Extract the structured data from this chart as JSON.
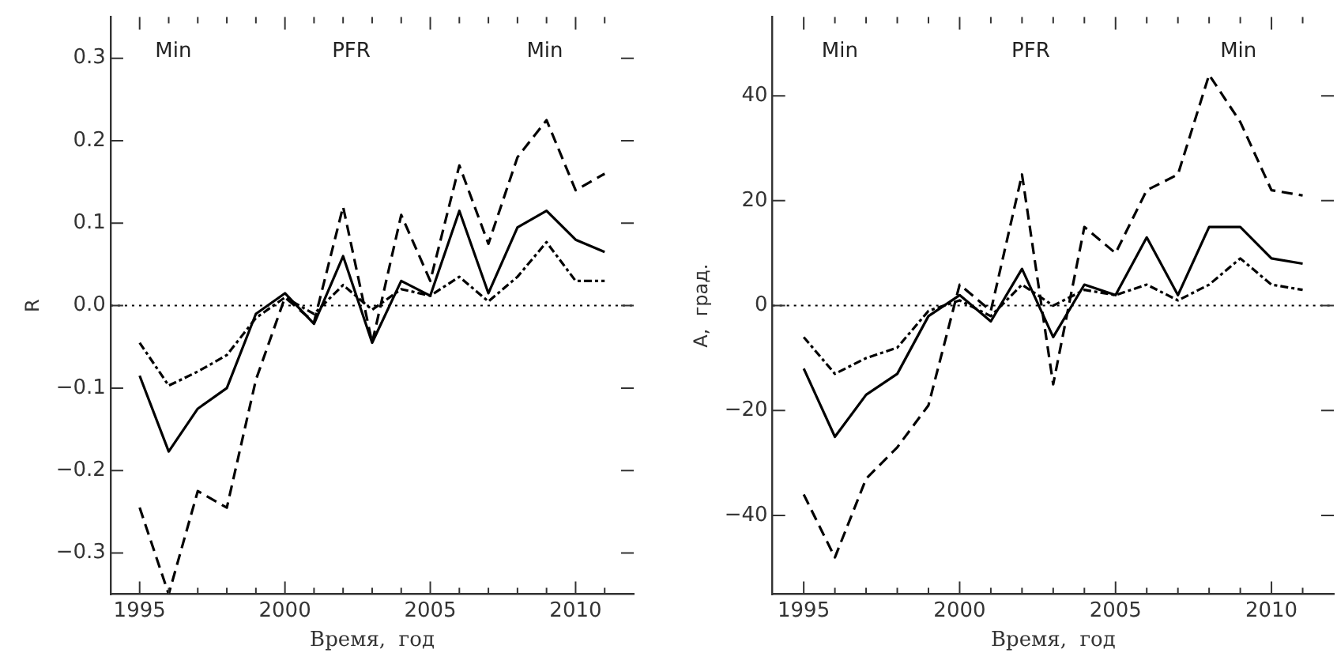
{
  "chart_data": [
    {
      "type": "line",
      "xlabel": "Время,  год",
      "ylabel": "R",
      "xlim": [
        1994,
        2012
      ],
      "ylim": [
        -0.35,
        0.35
      ],
      "xticks": [
        1995,
        {
          "value": 1996,
          "label": null
        },
        {
          "value": 1997,
          "label": null
        },
        {
          "value": 1998,
          "label": null
        },
        {
          "value": 1999,
          "label": null
        },
        2000,
        {
          "value": 2001,
          "label": null
        },
        {
          "value": 2002,
          "label": null
        },
        {
          "value": 2003,
          "label": null
        },
        {
          "value": 2004,
          "label": null
        },
        2005,
        {
          "value": 2006,
          "label": null
        },
        {
          "value": 2007,
          "label": null
        },
        {
          "value": 2008,
          "label": null
        },
        {
          "value": 2009,
          "label": null
        },
        2010,
        {
          "value": 2011,
          "label": null
        }
      ],
      "yticks": [
        {
          "value": -0.3,
          "label": "−0.3"
        },
        {
          "value": -0.2,
          "label": "−0.2"
        },
        {
          "value": -0.1,
          "label": "−0.1"
        },
        {
          "value": 0,
          "label": "0.0"
        },
        {
          "value": 0.1,
          "label": "0.1"
        },
        {
          "value": 0.2,
          "label": "0.2"
        },
        {
          "value": 0.3,
          "label": "0.3"
        }
      ],
      "x": [
        1995,
        1996,
        1997,
        1998,
        1999,
        2000,
        2001,
        2002,
        2003,
        2004,
        2005,
        2006,
        2007,
        2008,
        2009,
        2010,
        2011
      ],
      "series": [
        {
          "color": "#000000",
          "line_style": "solid",
          "values": [
            -0.085,
            -0.177,
            -0.125,
            -0.1,
            -0.01,
            0.015,
            -0.022,
            0.06,
            -0.045,
            0.03,
            0.012,
            0.115,
            0.015,
            0.095,
            0.115,
            0.08,
            0.065
          ]
        },
        {
          "color": "#000000",
          "line_style": "dashed",
          "values": [
            -0.245,
            -0.35,
            -0.225,
            -0.245,
            -0.09,
            0.01,
            -0.02,
            0.12,
            -0.045,
            0.11,
            0.03,
            0.17,
            0.075,
            0.18,
            0.225,
            0.14,
            0.16
          ]
        },
        {
          "color": "#000000",
          "line_style": "dashdot",
          "values": [
            -0.045,
            -0.097,
            -0.08,
            -0.06,
            -0.015,
            0.01,
            -0.01,
            0.025,
            -0.005,
            0.02,
            0.012,
            0.035,
            0.005,
            0.035,
            0.077,
            0.03,
            0.03
          ]
        }
      ],
      "ref_lines": [
        {
          "axis": "y",
          "value": 0,
          "line_style": "dotted",
          "color": "#000000"
        }
      ],
      "annotations": [
        "Min",
        "PFR",
        "Min"
      ],
      "grid": false,
      "legend": false,
      "marker": "none"
    },
    {
      "type": "line",
      "xlabel": "Время,  год",
      "ylabel": "A,  град.",
      "xlim": [
        1994,
        2012
      ],
      "ylim": [
        -55,
        55
      ],
      "xticks": [
        1995,
        {
          "value": 1996,
          "label": null
        },
        {
          "value": 1997,
          "label": null
        },
        {
          "value": 1998,
          "label": null
        },
        {
          "value": 1999,
          "label": null
        },
        2000,
        {
          "value": 2001,
          "label": null
        },
        {
          "value": 2002,
          "label": null
        },
        {
          "value": 2003,
          "label": null
        },
        {
          "value": 2004,
          "label": null
        },
        2005,
        {
          "value": 2006,
          "label": null
        },
        {
          "value": 2007,
          "label": null
        },
        {
          "value": 2008,
          "label": null
        },
        {
          "value": 2009,
          "label": null
        },
        2010,
        {
          "value": 2011,
          "label": null
        }
      ],
      "yticks": [
        {
          "value": -40,
          "label": "−40"
        },
        {
          "value": -20,
          "label": "−20"
        },
        0,
        20,
        40
      ],
      "x": [
        1995,
        1996,
        1997,
        1998,
        1999,
        2000,
        2001,
        2002,
        2003,
        2004,
        2005,
        2006,
        2007,
        2008,
        2009,
        2010,
        2011
      ],
      "series": [
        {
          "color": "#000000",
          "line_style": "solid",
          "values": [
            -12,
            -25,
            -17,
            -13,
            -2,
            2,
            -3,
            7,
            -6,
            4,
            2,
            13,
            2,
            15,
            15,
            9,
            8
          ]
        },
        {
          "color": "#000000",
          "line_style": "dashed",
          "values": [
            -36,
            -48,
            -33,
            -27,
            -19,
            4,
            -1,
            25,
            -15,
            15,
            10,
            22,
            25,
            44,
            35,
            22,
            21
          ]
        },
        {
          "color": "#000000",
          "line_style": "dashdot",
          "values": [
            -6,
            -13,
            -10,
            -8,
            -1,
            1,
            -2,
            4,
            0,
            3,
            2,
            4,
            1,
            4,
            9,
            4,
            3
          ]
        }
      ],
      "ref_lines": [
        {
          "axis": "y",
          "value": 0,
          "line_style": "dotted",
          "color": "#000000"
        }
      ],
      "annotations": [
        "Min",
        "PFR",
        "Min"
      ],
      "grid": false,
      "legend": false,
      "marker": "none"
    }
  ]
}
